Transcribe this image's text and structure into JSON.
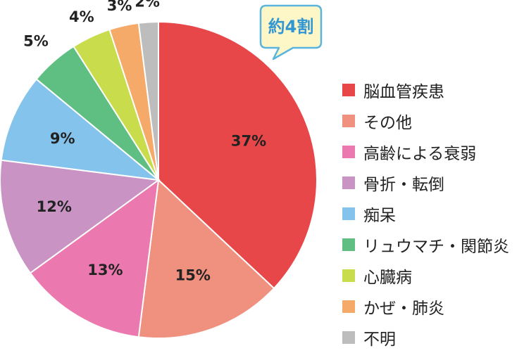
{
  "chart_data": {
    "type": "pie",
    "categories": [
      "脳血管疾患",
      "その他",
      "高齢による衰弱",
      "骨折・転倒",
      "痴呆",
      "リュウマチ・関節炎",
      "心臓病",
      "かぜ・肺炎",
      "不明"
    ],
    "values": [
      37,
      15,
      13,
      12,
      9,
      5,
      4,
      3,
      2
    ],
    "labels": [
      "37%",
      "15%",
      "13%",
      "12%",
      "9%",
      "5%",
      "4%",
      "3%",
      "2%"
    ],
    "colors": [
      "#e8474a",
      "#f0907e",
      "#eb78ae",
      "#c994c4",
      "#84c4ec",
      "#5fbf82",
      "#c8dc4c",
      "#f5aa6a",
      "#bdbdbd"
    ],
    "legend_position": "right",
    "start_angle": "top",
    "direction": "clockwise"
  },
  "callout": {
    "text": "約4割",
    "fill": "#fdf7c8",
    "border": "#5ab4dc",
    "text_color": "#3296d2"
  }
}
